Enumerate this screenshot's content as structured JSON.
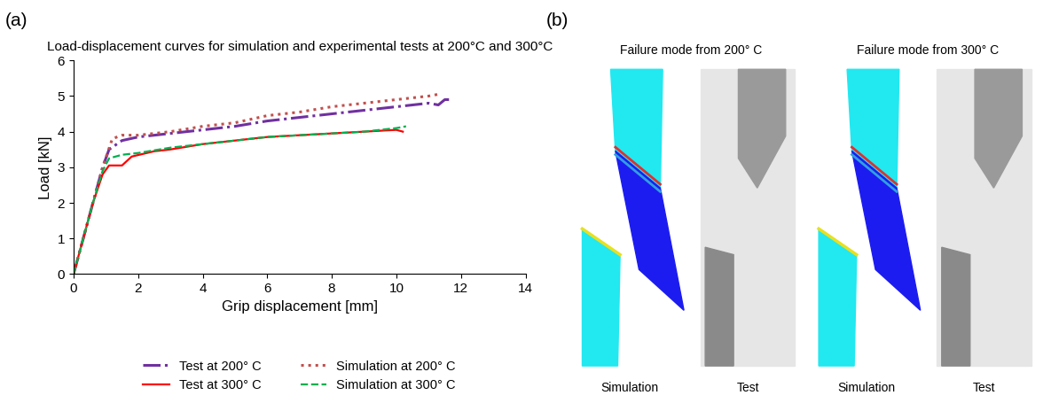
{
  "chart_data": {
    "type": "line",
    "title": "Load-displacement curves for simulation and experimental tests at 200°C and 300°C",
    "x_label": "Grip displacement [mm]",
    "y_label": "Load [kN]",
    "xlim": [
      0,
      14
    ],
    "xticks": [
      0,
      2,
      4,
      6,
      8,
      10,
      12,
      14
    ],
    "ylim": [
      0,
      6
    ],
    "yticks": [
      0,
      1,
      2,
      3,
      4,
      5,
      6
    ],
    "grid": false,
    "legend": "lower center",
    "series": [
      {
        "name": "Test at 200° C",
        "color": "#7030a0",
        "line_style": "dashdot",
        "x": [
          0,
          0.3,
          0.6,
          0.9,
          1.1,
          1.5,
          2,
          3,
          4,
          5,
          6,
          7,
          8,
          9,
          10,
          11,
          11.3,
          11.5,
          11.7
        ],
        "values": [
          0,
          1.0,
          2.0,
          3.0,
          3.5,
          3.75,
          3.85,
          3.95,
          4.05,
          4.15,
          4.3,
          4.4,
          4.5,
          4.6,
          4.7,
          4.8,
          4.75,
          4.9,
          4.9
        ]
      },
      {
        "name": "Simulation at 200° C",
        "color": "#c0504d",
        "line_style": "dotted",
        "x": [
          0,
          0.3,
          0.6,
          0.9,
          1.2,
          1.5,
          2,
          3,
          4,
          5,
          6,
          7,
          8,
          9,
          10,
          11,
          11.3
        ],
        "values": [
          0,
          1.0,
          2.0,
          3.0,
          3.8,
          3.9,
          3.9,
          4.0,
          4.15,
          4.25,
          4.45,
          4.55,
          4.7,
          4.8,
          4.9,
          5.0,
          5.05
        ]
      },
      {
        "name": "Test at 300° C",
        "color": "#ff0000",
        "line_style": "solid",
        "x": [
          0,
          0.3,
          0.6,
          0.9,
          1.1,
          1.5,
          1.8,
          2.5,
          3,
          4,
          5,
          6,
          7,
          8,
          9,
          10,
          10.2
        ],
        "values": [
          0,
          1.0,
          2.0,
          2.8,
          3.05,
          3.05,
          3.3,
          3.45,
          3.5,
          3.65,
          3.75,
          3.85,
          3.9,
          3.95,
          4.0,
          4.05,
          4.0
        ]
      },
      {
        "name": "Simulation at 300° C",
        "color": "#00b050",
        "line_style": "dashed",
        "x": [
          0,
          0.3,
          0.6,
          0.9,
          1.1,
          1.5,
          2,
          3,
          4,
          5,
          6,
          7,
          8,
          9,
          10,
          10.3
        ],
        "values": [
          0,
          1.0,
          2.0,
          2.9,
          3.25,
          3.35,
          3.4,
          3.55,
          3.65,
          3.75,
          3.85,
          3.9,
          3.95,
          4.0,
          4.1,
          4.15
        ]
      }
    ]
  },
  "panel_a_label": "(a)",
  "panel_b": {
    "label": "(b)",
    "groups": [
      {
        "title": "Failure mode from 200° C",
        "captions": [
          "Simulation",
          "Test"
        ]
      },
      {
        "title": "Failure mode from 300° C",
        "captions": [
          "Simulation",
          "Test"
        ]
      }
    ]
  }
}
